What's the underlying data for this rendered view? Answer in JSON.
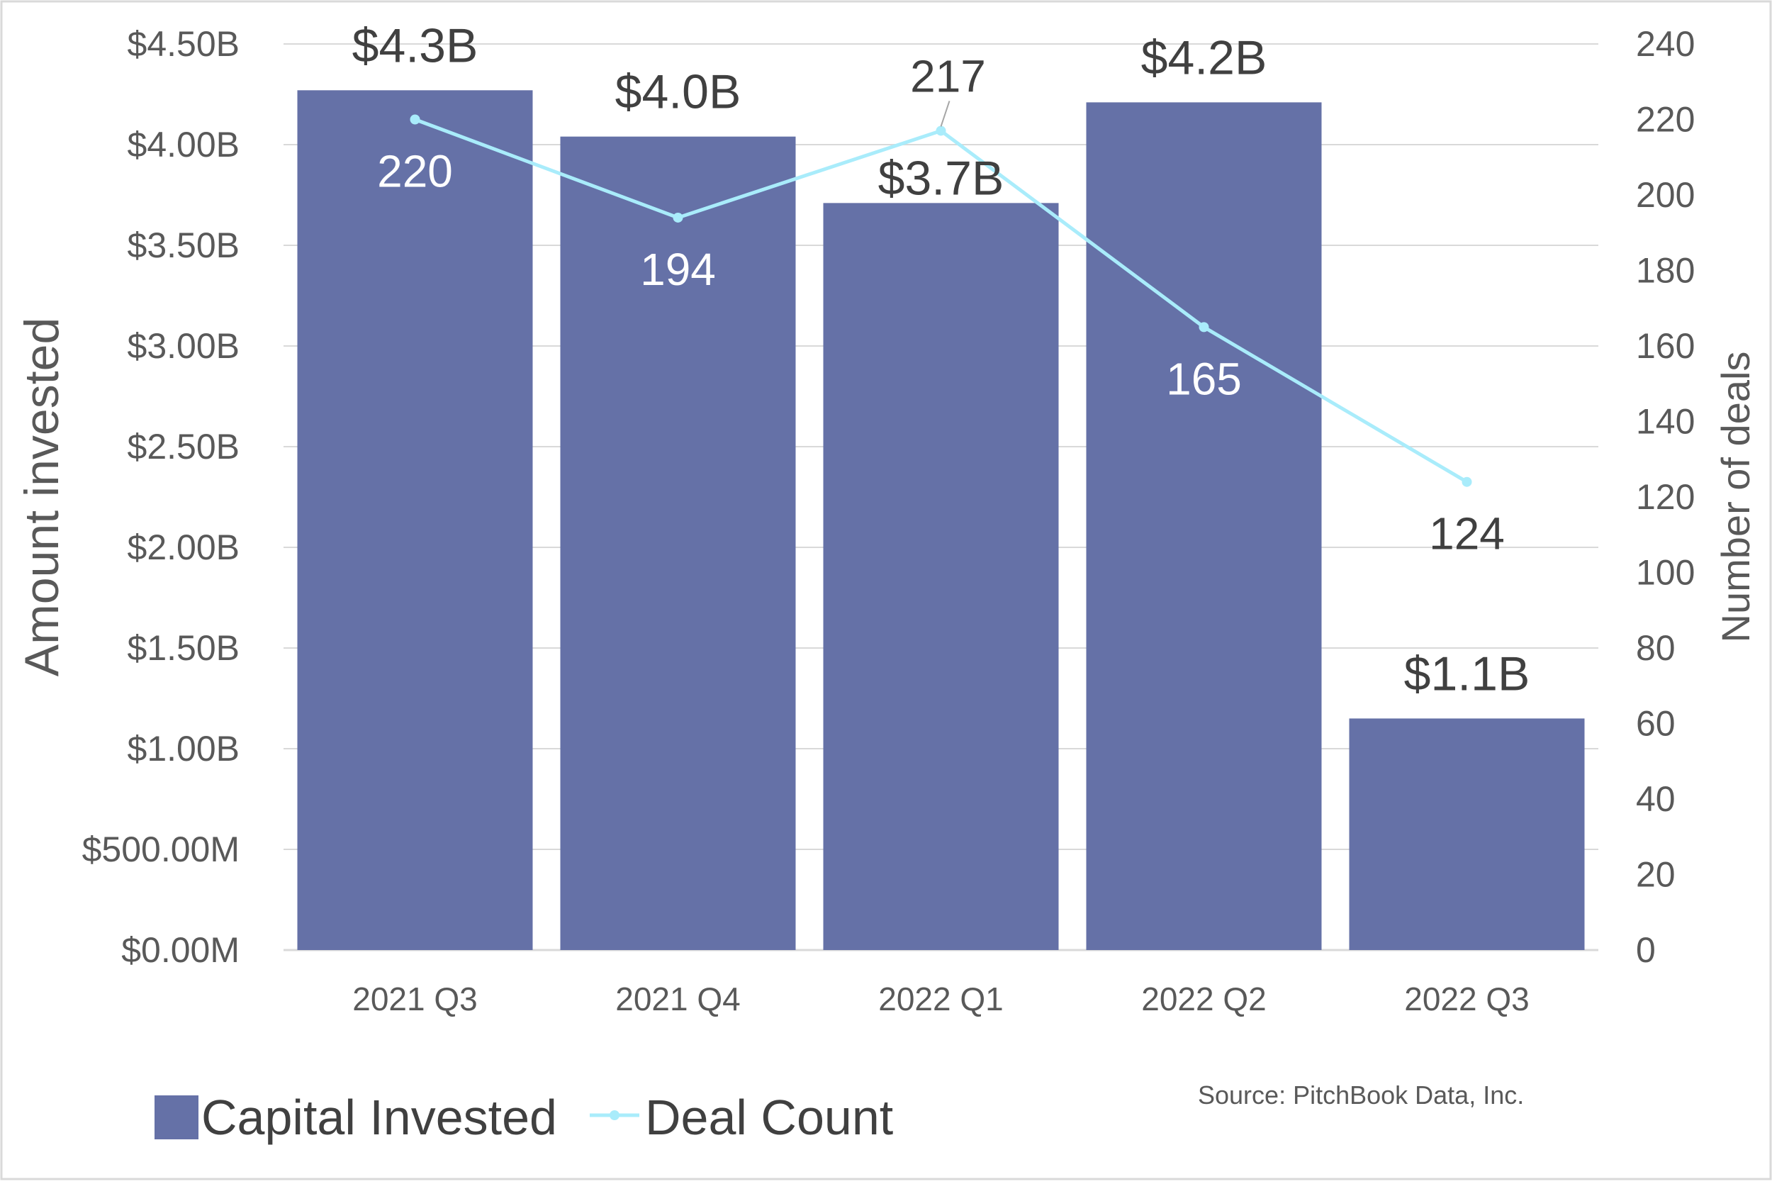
{
  "chart_data": {
    "type": "bar+line",
    "categories": [
      "2021 Q3",
      "2021 Q4",
      "2022 Q1",
      "2022 Q2",
      "2022 Q3"
    ],
    "series": [
      {
        "name": "Capital Invested",
        "kind": "bar",
        "axis": "left",
        "values": [
          4.27,
          4.04,
          3.71,
          4.21,
          1.15
        ],
        "labels": [
          "$4.3B",
          "$4.0B",
          "$3.7B",
          "$4.2B",
          "$1.1B"
        ],
        "color": "#6571a7"
      },
      {
        "name": "Deal Count",
        "kind": "line",
        "axis": "right",
        "values": [
          220,
          194,
          217,
          165,
          124
        ],
        "labels": [
          "220",
          "194",
          "217",
          "165",
          "124"
        ],
        "color": "#a9ecfb"
      }
    ],
    "y_left": {
      "label": "Amount invested",
      "range": [
        0,
        4.5
      ],
      "ticks": [
        0,
        0.5,
        1,
        1.5,
        2,
        2.5,
        3,
        3.5,
        4,
        4.5
      ],
      "tick_labels": [
        "$0.00M",
        "$500.00M",
        "$1.00B",
        "$1.50B",
        "$2.00B",
        "$2.50B",
        "$3.00B",
        "$3.50B",
        "$4.00B",
        "$4.50B"
      ]
    },
    "y_right": {
      "label": "Number of deals",
      "range": [
        0,
        240
      ],
      "ticks": [
        0,
        20,
        40,
        60,
        80,
        100,
        120,
        140,
        160,
        180,
        200,
        220,
        240
      ],
      "tick_labels": [
        "0",
        "20",
        "40",
        "60",
        "80",
        "100",
        "120",
        "140",
        "160",
        "180",
        "200",
        "220",
        "240"
      ]
    },
    "grid": true,
    "legend": {
      "position": "bottom-left",
      "items": [
        "Capital Invested",
        "Deal Count"
      ]
    },
    "source": "Source: PitchBook Data, Inc.",
    "colors": {
      "bar": "#6571a7",
      "line": "#a9ecfb",
      "text": "#404040",
      "tick": "#595959",
      "grid": "#d9d9d9",
      "label_on_bar": "#ffffff"
    }
  }
}
